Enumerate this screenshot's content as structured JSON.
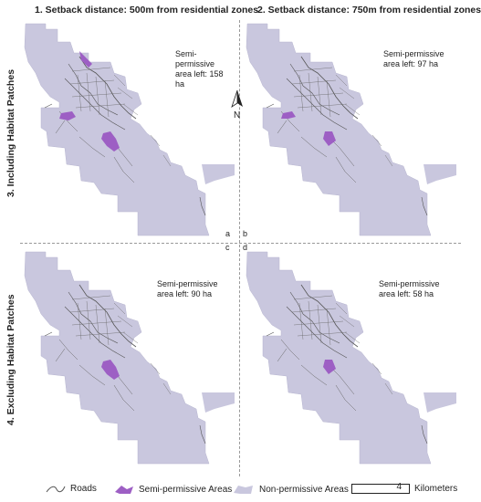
{
  "columns": [
    "1. Setback distance: 500m from residential zones",
    "2. Setback distance: 750m from residential zones"
  ],
  "rows": [
    "3. Including Habitat Patches",
    "4. Excluding Habitat Patches"
  ],
  "panels": {
    "a": {
      "letter": "a",
      "text_line1": "Semi-permissive",
      "text_line2": "area left: 158 ha"
    },
    "b": {
      "letter": "b",
      "text_line1": "Semi-permissive",
      "text_line2": "area left: 97 ha"
    },
    "c": {
      "letter": "c",
      "text_line1": "Semi-permissive",
      "text_line2": "area left: 90 ha"
    },
    "d": {
      "letter": "d",
      "text_line1": "Semi-permissive",
      "text_line2": "area left: 58 ha"
    }
  },
  "north_label": "N",
  "legend": {
    "roads": "Roads",
    "semi": "Semi-permissive Areas",
    "non": "Non-permissive Areas",
    "scale_value": "4",
    "scale_unit": "Kilometers"
  },
  "colors": {
    "non_permissive": "#c9c7de",
    "semi_permissive": "#9d5fc4",
    "roads": "#555555"
  }
}
